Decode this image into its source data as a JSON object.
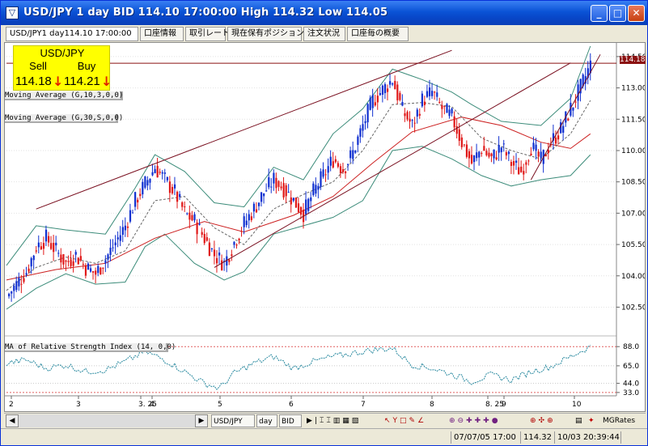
{
  "window": {
    "title": "USD/JPY 1 day BID 114.10 17:00:00 High 114.32 Low 114.05",
    "icon": "chart-icon",
    "buttons": {
      "minimize": "_",
      "maximize": "□",
      "close": "✕"
    }
  },
  "tabs": [
    {
      "label": "USD/JPY1 day114.10 17:00:00",
      "active": true
    },
    {
      "label": "口座情報",
      "active": false
    },
    {
      "label": "取引レート",
      "active": false
    },
    {
      "label": "現在保有ポジション",
      "active": false
    },
    {
      "label": "注文状況",
      "active": false
    },
    {
      "label": "口座毎の概要",
      "active": false
    }
  ],
  "quote": {
    "symbol": "USD/JPY",
    "sell_label": "Sell",
    "buy_label": "Buy",
    "sell_price": "114.18",
    "buy_price": "114.21",
    "direction": "down"
  },
  "indicator_labels": [
    "Moving Average (G,10,3,0,0)",
    "Moving Average (G,30,S,0,0)",
    "MA of Relative Strength Index (14, 0,0)"
  ],
  "last_price_tag": "114.18",
  "chart_data": {
    "type": "candlestick",
    "price_axis": {
      "ticks": [
        114.5,
        113.0,
        111.5,
        110.0,
        108.5,
        107.0,
        105.5,
        104.0,
        102.5
      ],
      "tick_labels": [
        "114.50",
        "113.00",
        "111.50",
        "110.00",
        "108.50",
        "107.00",
        "105.50",
        "104.00",
        "102.50"
      ],
      "range": [
        101.2,
        115.0
      ]
    },
    "rsi_axis": {
      "ticks": [
        88,
        65,
        44,
        33
      ],
      "tick_labels": [
        "88.0",
        "65.0",
        "44.0",
        "33.0"
      ],
      "range": [
        29,
        95
      ],
      "levels": [
        88,
        33
      ]
    },
    "time_axis": {
      "labels": [
        "2",
        "3",
        "3. 25",
        "4",
        "5",
        "6",
        "7",
        "8",
        "8. 25",
        "9",
        "10"
      ]
    },
    "price_path": [
      [
        0,
        103.0
      ],
      [
        4,
        103.6
      ],
      [
        8,
        104.2
      ],
      [
        12,
        105.4
      ],
      [
        16,
        105.8
      ],
      [
        20,
        105.2
      ],
      [
        24,
        104.6
      ],
      [
        28,
        105.0
      ],
      [
        32,
        104.4
      ],
      [
        36,
        104.1
      ],
      [
        40,
        104.8
      ],
      [
        44,
        105.6
      ],
      [
        48,
        106.4
      ],
      [
        52,
        107.6
      ],
      [
        56,
        108.4
      ],
      [
        60,
        109.2
      ],
      [
        64,
        108.6
      ],
      [
        68,
        108.0
      ],
      [
        72,
        107.0
      ],
      [
        76,
        106.6
      ],
      [
        80,
        105.8
      ],
      [
        84,
        105.0
      ],
      [
        88,
        104.6
      ],
      [
        92,
        105.6
      ],
      [
        96,
        106.5
      ],
      [
        100,
        107.2
      ],
      [
        104,
        108.0
      ],
      [
        108,
        108.6
      ],
      [
        112,
        108.2
      ],
      [
        116,
        107.6
      ],
      [
        120,
        107.0
      ],
      [
        124,
        108.0
      ],
      [
        128,
        108.8
      ],
      [
        132,
        109.6
      ],
      [
        136,
        109.1
      ],
      [
        140,
        109.9
      ],
      [
        144,
        111.2
      ],
      [
        148,
        112.4
      ],
      [
        152,
        112.9
      ],
      [
        156,
        113.4
      ],
      [
        160,
        111.9
      ],
      [
        164,
        111.2
      ],
      [
        168,
        112.4
      ],
      [
        172,
        112.8
      ],
      [
        176,
        112.0
      ],
      [
        180,
        111.6
      ],
      [
        184,
        110.4
      ],
      [
        188,
        109.4
      ],
      [
        192,
        110.1
      ],
      [
        196,
        109.6
      ],
      [
        200,
        110.2
      ],
      [
        204,
        109.4
      ],
      [
        208,
        109.0
      ],
      [
        212,
        110.2
      ],
      [
        216,
        109.5
      ],
      [
        220,
        110.4
      ],
      [
        224,
        111.0
      ],
      [
        228,
        112.0
      ],
      [
        232,
        113.0
      ],
      [
        236,
        114.1
      ]
    ],
    "ma_fast_path": [
      [
        0,
        103.3
      ],
      [
        12,
        104.4
      ],
      [
        24,
        104.9
      ],
      [
        36,
        104.6
      ],
      [
        48,
        105.2
      ],
      [
        60,
        107.6
      ],
      [
        72,
        107.8
      ],
      [
        84,
        106.3
      ],
      [
        96,
        105.5
      ],
      [
        108,
        107.2
      ],
      [
        120,
        107.9
      ],
      [
        132,
        108.5
      ],
      [
        144,
        110.0
      ],
      [
        156,
        112.2
      ],
      [
        168,
        112.3
      ],
      [
        180,
        112.1
      ],
      [
        192,
        110.6
      ],
      [
        204,
        110.0
      ],
      [
        216,
        109.6
      ],
      [
        228,
        110.8
      ],
      [
        236,
        112.4
      ]
    ],
    "ma_slow_path": [
      [
        0,
        103.8
      ],
      [
        20,
        104.3
      ],
      [
        40,
        104.6
      ],
      [
        60,
        105.8
      ],
      [
        80,
        106.6
      ],
      [
        96,
        106.1
      ],
      [
        116,
        106.9
      ],
      [
        132,
        107.8
      ],
      [
        148,
        109.4
      ],
      [
        164,
        110.9
      ],
      [
        184,
        111.6
      ],
      [
        200,
        111.2
      ],
      [
        216,
        110.4
      ],
      [
        228,
        110.1
      ],
      [
        236,
        110.8
      ]
    ],
    "bollinger_upper_path": [
      [
        0,
        104.5
      ],
      [
        12,
        106.4
      ],
      [
        24,
        106.2
      ],
      [
        40,
        106.0
      ],
      [
        52,
        108.2
      ],
      [
        60,
        109.8
      ],
      [
        72,
        109.0
      ],
      [
        84,
        107.5
      ],
      [
        96,
        107.3
      ],
      [
        108,
        109.2
      ],
      [
        120,
        108.6
      ],
      [
        132,
        110.8
      ],
      [
        144,
        112.0
      ],
      [
        156,
        113.9
      ],
      [
        168,
        113.4
      ],
      [
        180,
        112.8
      ],
      [
        188,
        112.2
      ],
      [
        200,
        111.4
      ],
      [
        216,
        111.2
      ],
      [
        228,
        112.5
      ],
      [
        236,
        115.0
      ]
    ],
    "bollinger_lower_path": [
      [
        0,
        102.4
      ],
      [
        12,
        103.4
      ],
      [
        24,
        104.1
      ],
      [
        36,
        103.6
      ],
      [
        48,
        103.7
      ],
      [
        56,
        105.4
      ],
      [
        64,
        106.0
      ],
      [
        76,
        104.6
      ],
      [
        88,
        103.8
      ],
      [
        96,
        104.2
      ],
      [
        108,
        106.0
      ],
      [
        120,
        106.4
      ],
      [
        132,
        106.8
      ],
      [
        144,
        107.6
      ],
      [
        156,
        110.0
      ],
      [
        168,
        110.2
      ],
      [
        180,
        109.6
      ],
      [
        192,
        108.8
      ],
      [
        204,
        108.3
      ],
      [
        216,
        108.6
      ],
      [
        228,
        108.8
      ],
      [
        236,
        109.8
      ]
    ],
    "trendlines": [
      {
        "from": [
          12,
          107.2
        ],
        "to": [
          180,
          114.8
        ]
      },
      {
        "from": [
          84,
          104.4
        ],
        "to": [
          228,
          114.2
        ]
      },
      {
        "from": [
          212,
          108.6
        ],
        "to": [
          240,
          114.6
        ]
      }
    ],
    "rsi_path": [
      [
        0,
        68
      ],
      [
        8,
        72
      ],
      [
        16,
        62
      ],
      [
        24,
        66
      ],
      [
        32,
        58
      ],
      [
        40,
        60
      ],
      [
        48,
        70
      ],
      [
        56,
        82
      ],
      [
        64,
        72
      ],
      [
        72,
        58
      ],
      [
        80,
        44
      ],
      [
        86,
        38
      ],
      [
        92,
        56
      ],
      [
        100,
        68
      ],
      [
        108,
        76
      ],
      [
        116,
        62
      ],
      [
        124,
        70
      ],
      [
        132,
        76
      ],
      [
        140,
        80
      ],
      [
        148,
        84
      ],
      [
        156,
        86
      ],
      [
        164,
        66
      ],
      [
        172,
        62
      ],
      [
        180,
        55
      ],
      [
        188,
        46
      ],
      [
        196,
        54
      ],
      [
        204,
        48
      ],
      [
        212,
        58
      ],
      [
        220,
        64
      ],
      [
        228,
        76
      ],
      [
        236,
        88
      ]
    ],
    "legend": "none",
    "grid": true
  },
  "toolbar": {
    "scroll_left": "◀",
    "scroll_right": "▶",
    "symbol_select": "USD/JPY",
    "period_select": "day",
    "price_type_select": "BID",
    "brand_label": "MGRates"
  },
  "status": {
    "left": "07/07/05 17:00",
    "price": "114.32",
    "time": "10/03 20:39:44"
  }
}
